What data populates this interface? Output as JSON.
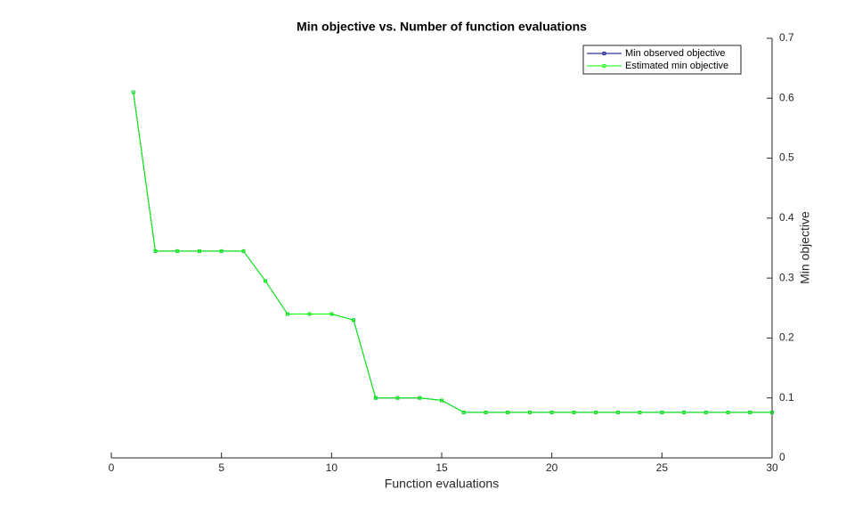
{
  "chart_data": {
    "type": "line",
    "title": "Min objective vs. Number of function evaluations",
    "x_label": "Function evaluations",
    "y_label": "Min objective",
    "x": [
      1,
      2,
      3,
      4,
      5,
      6,
      7,
      8,
      9,
      10,
      11,
      12,
      13,
      14,
      15,
      16,
      17,
      18,
      19,
      20,
      21,
      22,
      23,
      24,
      25,
      26,
      27,
      28,
      29,
      30
    ],
    "series": [
      {
        "name": "Min observed objective",
        "color": "#000080",
        "values": [
          0.61,
          0.345,
          0.345,
          0.345,
          0.345,
          0.345,
          0.295,
          0.24,
          0.24,
          0.24,
          0.23,
          0.1,
          0.1,
          0.1,
          0.096,
          0.076,
          0.076,
          0.076,
          0.076,
          0.076,
          0.076,
          0.076,
          0.076,
          0.076,
          0.076,
          0.076,
          0.076,
          0.076,
          0.076,
          0.076
        ]
      },
      {
        "name": "Estimated min objective",
        "color": "#00ff00",
        "values": [
          0.61,
          0.345,
          0.345,
          0.345,
          0.345,
          0.345,
          0.295,
          0.24,
          0.24,
          0.24,
          0.23,
          0.1,
          0.1,
          0.1,
          0.096,
          0.076,
          0.076,
          0.076,
          0.076,
          0.076,
          0.076,
          0.076,
          0.076,
          0.076,
          0.076,
          0.076,
          0.076,
          0.076,
          0.076,
          0.076
        ]
      }
    ],
    "xlim": [
      0,
      30
    ],
    "xticks": [
      0,
      5,
      10,
      15,
      20,
      25,
      30
    ],
    "ylim": [
      0,
      0.7
    ],
    "yticks": [
      0,
      0.1,
      0.2,
      0.3,
      0.4,
      0.5,
      0.6,
      0.7
    ],
    "y_axis_side": "right",
    "grid": false,
    "legend": "upper-right"
  }
}
